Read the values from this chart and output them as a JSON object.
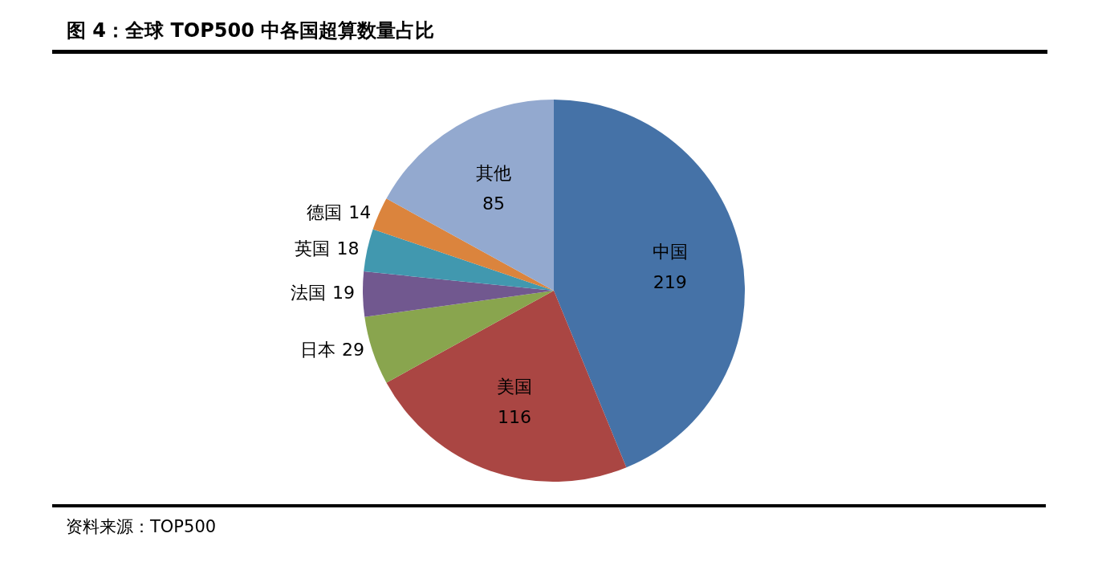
{
  "chart_data": {
    "type": "pie",
    "title": "图 4：全球 TOP500 中各国超算数量占比",
    "categories": [
      "中国",
      "美国",
      "日本",
      "法国",
      "英国",
      "德国",
      "其他"
    ],
    "values": [
      219,
      116,
      29,
      19,
      18,
      14,
      85
    ],
    "colors": [
      "#4572a7",
      "#aa4643",
      "#89a54e",
      "#71588f",
      "#4198af",
      "#db843d",
      "#93a9cf"
    ],
    "data_labels": true,
    "legend": false,
    "annotations": [
      "资料来源：TOP500"
    ]
  }
}
